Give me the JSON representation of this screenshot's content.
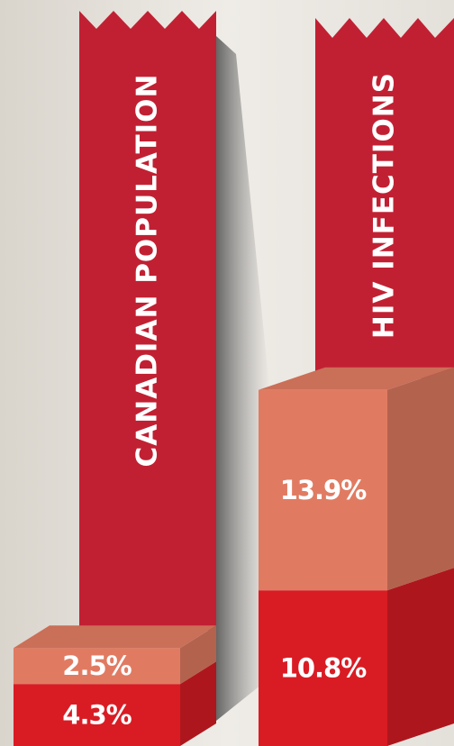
{
  "chart_data": {
    "type": "stacked-bar-3d",
    "categories": [
      "CANADIAN POPULATION",
      "HIV INFECTIONS"
    ],
    "series": [
      {
        "color": "#d91c24",
        "values": [
          4.3,
          10.8
        ],
        "value_labels": [
          "4.3%",
          "10.8%"
        ]
      },
      {
        "color": "#e07b62",
        "values": [
          2.5,
          13.9
        ],
        "value_labels": [
          "2.5%",
          "13.9%"
        ]
      }
    ]
  }
}
